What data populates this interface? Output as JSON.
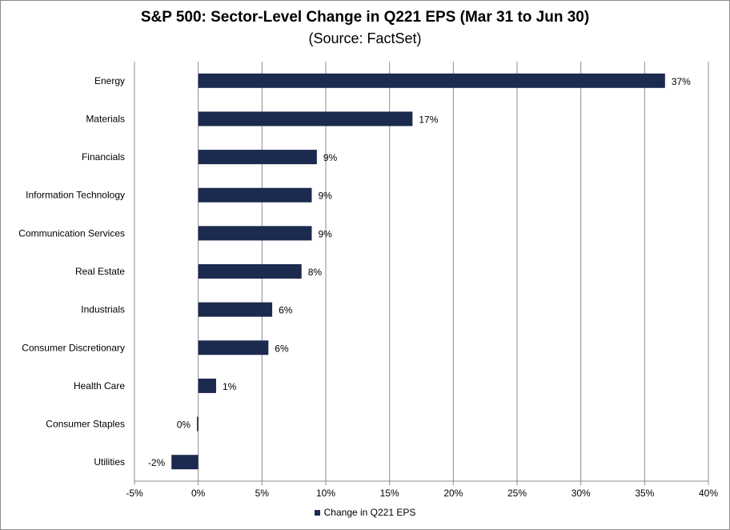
{
  "chart_data": {
    "type": "bar",
    "orientation": "horizontal",
    "title": "S&P 500: Sector-Level Change in Q221 EPS (Mar 31 to Jun 30)",
    "subtitle": "(Source: FactSet)",
    "categories": [
      "Energy",
      "Materials",
      "Financials",
      "Information Technology",
      "Communication Services",
      "Real Estate",
      "Industrials",
      "Consumer Discretionary",
      "Health Care",
      "Consumer Staples",
      "Utilities"
    ],
    "series": [
      {
        "name": "Change in Q221 EPS",
        "values": [
          36.6,
          16.8,
          9.3,
          8.9,
          8.9,
          8.1,
          5.8,
          5.5,
          1.4,
          -0.1,
          -2.1
        ],
        "labels": [
          "37%",
          "17%",
          "9%",
          "9%",
          "9%",
          "8%",
          "6%",
          "6%",
          "1%",
          "0%",
          "-2%"
        ],
        "color": "#1b2a4e"
      }
    ],
    "xlim": [
      -5,
      40
    ],
    "x_ticks": [
      -5,
      0,
      5,
      10,
      15,
      20,
      25,
      30,
      35,
      40
    ],
    "x_tick_labels": [
      "-5%",
      "0%",
      "5%",
      "10%",
      "15%",
      "20%",
      "25%",
      "30%",
      "35%",
      "40%"
    ],
    "grid": "vertical",
    "legend": "bottom-center"
  }
}
